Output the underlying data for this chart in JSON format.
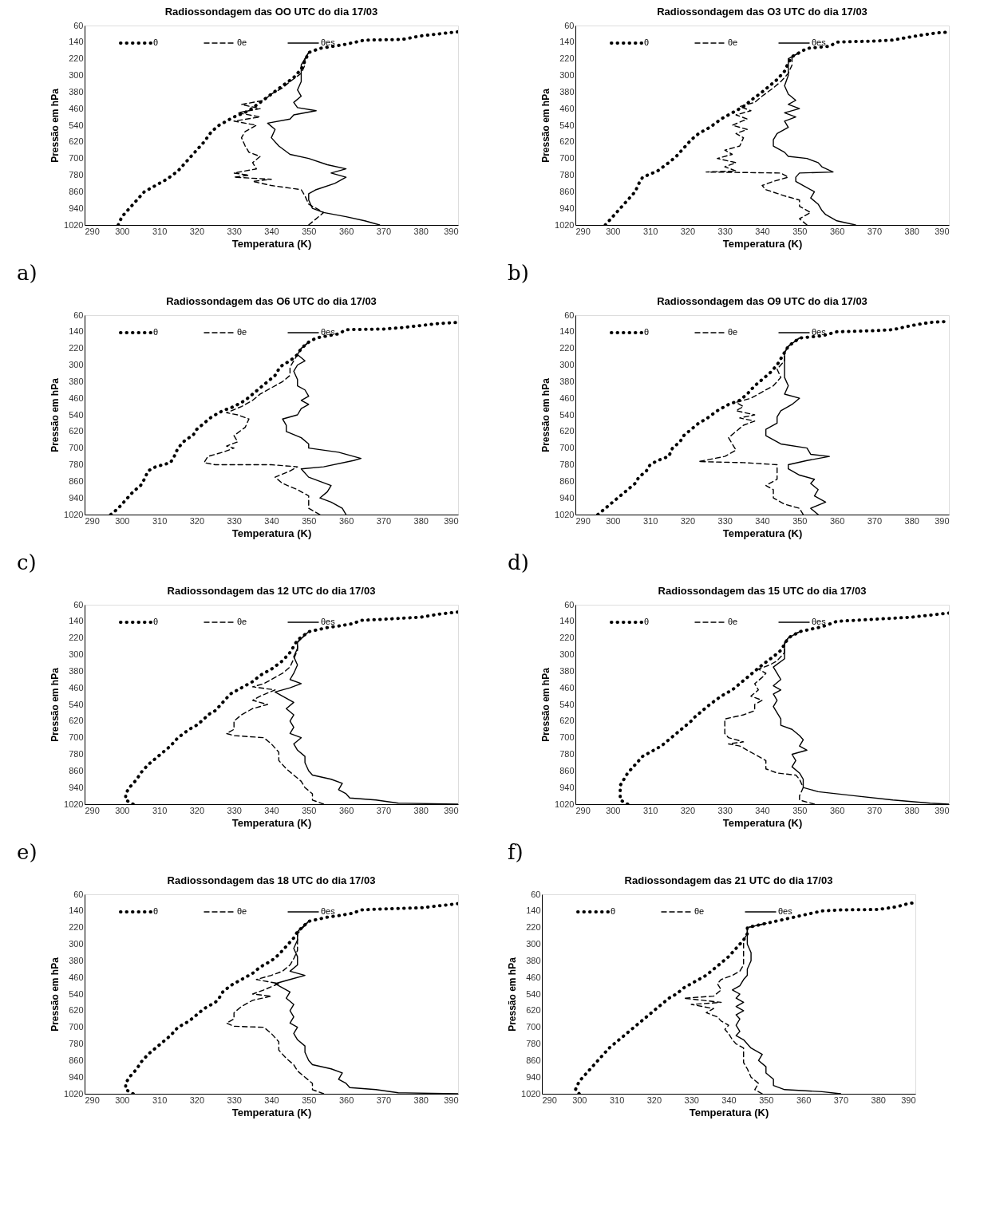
{
  "chart_data": [
    {
      "type": "line",
      "title": "Radiossondagem das OO UTC do dia 17/03",
      "xlabel": "Temperatura  (K)",
      "ylabel": "Pressão em hPa",
      "xlim": [
        290,
        390
      ],
      "xticks": [
        290,
        300,
        310,
        320,
        330,
        340,
        350,
        360,
        370,
        380,
        390
      ],
      "ylim": [
        1020,
        60
      ],
      "yticks": [
        60,
        140,
        220,
        300,
        380,
        460,
        540,
        620,
        700,
        780,
        860,
        940,
        1020
      ],
      "legend": "top left",
      "annotations": [
        "a)"
      ],
      "series": [
        {
          "name": "θ",
          "color": "#000000",
          "line_style": "dotted",
          "x": [
            299,
            300,
            302,
            304,
            306,
            309,
            312,
            315,
            318,
            320,
            322,
            324,
            326,
            330,
            334,
            337,
            340,
            343,
            346,
            348,
            349,
            350,
            353,
            360,
            365,
            375,
            380,
            385,
            390
          ],
          "values": [
            1020,
            980,
            940,
            900,
            860,
            830,
            800,
            760,
            700,
            660,
            620,
            570,
            540,
            500,
            470,
            430,
            390,
            350,
            310,
            270,
            230,
            190,
            170,
            150,
            130,
            127,
            110,
            100,
            90
          ]
        },
        {
          "name": "θe",
          "color": "#000000",
          "line_style": "dashed",
          "x": [
            350,
            354,
            350,
            349,
            348,
            340,
            335,
            340,
            330,
            334,
            330,
            336,
            335,
            337,
            334,
            333,
            332,
            333,
            336,
            330,
            337,
            331,
            337,
            332,
            338,
            340,
            343,
            345,
            348,
            349,
            349,
            350
          ],
          "values": [
            1020,
            960,
            920,
            880,
            850,
            830,
            810,
            800,
            790,
            780,
            770,
            750,
            720,
            690,
            670,
            640,
            600,
            570,
            540,
            520,
            500,
            480,
            460,
            440,
            420,
            390,
            360,
            330,
            290,
            250,
            220,
            190
          ]
        },
        {
          "name": "θes",
          "color": "#000000",
          "line_style": "solid",
          "x": [
            369,
            365,
            360,
            354,
            351,
            350,
            350,
            352,
            357,
            360,
            356,
            360,
            355,
            350,
            345,
            342,
            340,
            341,
            339,
            345,
            346,
            352,
            347,
            346,
            348,
            347,
            348,
            348,
            348,
            349,
            350
          ],
          "values": [
            1020,
            1000,
            980,
            960,
            940,
            900,
            870,
            850,
            820,
            790,
            770,
            750,
            730,
            700,
            680,
            640,
            600,
            560,
            530,
            510,
            490,
            470,
            455,
            430,
            400,
            370,
            330,
            290,
            250,
            220,
            190
          ]
        }
      ]
    },
    {
      "type": "line",
      "title": "Radiossondagem das O3 UTC do dia 17/03",
      "xlabel": "Temperatura  (K)",
      "ylabel": "Pressão em hPa",
      "xlim": [
        290,
        390
      ],
      "xticks": [
        290,
        300,
        310,
        320,
        330,
        340,
        350,
        360,
        370,
        380,
        390
      ],
      "ylim": [
        1020,
        60
      ],
      "yticks": [
        60,
        140,
        220,
        300,
        380,
        460,
        540,
        620,
        700,
        780,
        860,
        940,
        1020
      ],
      "legend": "top left",
      "annotations": [
        "b)"
      ],
      "series": [
        {
          "name": "θ",
          "color": "#000000",
          "line_style": "dotted",
          "x": [
            298,
            300,
            302,
            304,
            306,
            307,
            308,
            312,
            315,
            317,
            319,
            321,
            323,
            326,
            329,
            332,
            335,
            337,
            340,
            342,
            344,
            346,
            347,
            348,
            350,
            352,
            358,
            360,
            365,
            370,
            375,
            378,
            383,
            387,
            390
          ],
          "values": [
            1020,
            980,
            940,
            900,
            860,
            820,
            790,
            760,
            720,
            690,
            650,
            610,
            580,
            550,
            510,
            480,
            450,
            420,
            380,
            350,
            320,
            280,
            240,
            210,
            190,
            170,
            160,
            140,
            137,
            135,
            130,
            120,
            105,
            95,
            92
          ]
        },
        {
          "name": "θe",
          "color": "#000000",
          "line_style": "dashed",
          "x": [
            352,
            350,
            353,
            350,
            350,
            346,
            341,
            340,
            343,
            347,
            345,
            325,
            333,
            330,
            333,
            328,
            332,
            330,
            334,
            335,
            333,
            336,
            332,
            336,
            333,
            337,
            334,
            338,
            340,
            343,
            345,
            347,
            348,
            348,
            350
          ],
          "values": [
            1020,
            990,
            960,
            930,
            900,
            880,
            850,
            830,
            810,
            790,
            770,
            765,
            760,
            740,
            720,
            700,
            680,
            660,
            640,
            600,
            580,
            560,
            540,
            510,
            490,
            470,
            450,
            430,
            400,
            360,
            330,
            290,
            250,
            210,
            190
          ]
        },
        {
          "name": "θes",
          "color": "#000000",
          "line_style": "solid",
          "x": [
            365,
            360,
            357,
            356,
            355,
            353,
            354,
            351,
            349,
            349,
            350,
            359,
            356,
            355,
            352,
            347,
            346,
            343,
            343,
            344,
            347,
            346,
            349,
            346,
            350,
            347,
            349,
            347,
            346,
            347,
            347,
            347,
            350
          ],
          "values": [
            1020,
            1000,
            970,
            950,
            920,
            890,
            860,
            830,
            810,
            790,
            770,
            765,
            740,
            720,
            700,
            690,
            670,
            640,
            610,
            580,
            550,
            520,
            500,
            480,
            460,
            440,
            420,
            390,
            350,
            300,
            260,
            220,
            190
          ]
        }
      ]
    },
    {
      "type": "line",
      "title": "Radiossondagem das O6 UTC do dia 17/03",
      "xlabel": "Temperatura  (K)",
      "ylabel": "Pressão em hPa",
      "xlim": [
        290,
        390
      ],
      "xticks": [
        290,
        300,
        310,
        320,
        330,
        340,
        350,
        360,
        370,
        380,
        390
      ],
      "ylim": [
        1020,
        60
      ],
      "yticks": [
        60,
        140,
        220,
        300,
        380,
        460,
        540,
        620,
        700,
        780,
        860,
        940,
        1020
      ],
      "legend": "top left",
      "annotations": [
        "c)"
      ],
      "series": [
        {
          "name": "θ",
          "color": "#000000",
          "line_style": "dotted",
          "x": [
            297,
            299,
            301,
            303,
            305,
            306,
            307,
            309,
            313,
            314,
            315,
            317,
            319,
            320,
            322,
            324,
            327,
            330,
            333,
            335,
            337,
            339,
            341,
            342,
            343,
            345,
            347,
            348,
            350,
            352,
            358,
            360,
            370,
            375,
            380,
            385,
            390
          ],
          "values": [
            1020,
            990,
            950,
            910,
            880,
            850,
            810,
            790,
            770,
            740,
            700,
            660,
            640,
            610,
            580,
            550,
            520,
            500,
            470,
            440,
            410,
            380,
            350,
            320,
            300,
            280,
            250,
            220,
            190,
            170,
            150,
            130,
            127,
            120,
            110,
            100,
            95
          ]
        },
        {
          "name": "θe",
          "color": "#000000",
          "line_style": "dashed",
          "x": [
            353,
            350,
            350,
            350,
            347,
            343,
            341,
            345,
            347,
            340,
            325,
            322,
            323,
            327,
            330,
            328,
            331,
            330,
            333,
            334,
            331,
            328,
            332,
            335,
            337,
            340,
            343,
            345,
            345,
            346,
            347,
            348,
            350
          ],
          "values": [
            1020,
            990,
            960,
            930,
            900,
            870,
            840,
            810,
            790,
            780,
            780,
            770,
            740,
            720,
            700,
            690,
            670,
            640,
            600,
            560,
            540,
            530,
            500,
            470,
            440,
            410,
            380,
            350,
            310,
            280,
            250,
            220,
            190
          ]
        },
        {
          "name": "θes",
          "color": "#000000",
          "line_style": "solid",
          "x": [
            360,
            359,
            356,
            353,
            355,
            356,
            353,
            350,
            348,
            354,
            362,
            364,
            358,
            350,
            350,
            348,
            344,
            344,
            343,
            347,
            348,
            350,
            348,
            350,
            349,
            347,
            347,
            346,
            347,
            349,
            347,
            348,
            350
          ],
          "values": [
            1020,
            990,
            960,
            940,
            910,
            880,
            860,
            840,
            800,
            790,
            760,
            750,
            720,
            700,
            680,
            650,
            620,
            590,
            560,
            540,
            510,
            490,
            470,
            450,
            420,
            400,
            370,
            330,
            300,
            280,
            250,
            220,
            190
          ]
        }
      ]
    },
    {
      "type": "line",
      "title": "Radiossondagem das O9 UTC do dia 17/03",
      "xlabel": "Temperatura  (K)",
      "ylabel": "Pressão em hPa",
      "xlim": [
        290,
        390
      ],
      "xticks": [
        290,
        300,
        310,
        320,
        330,
        340,
        350,
        360,
        370,
        380,
        390
      ],
      "ylim": [
        1020,
        60
      ],
      "yticks": [
        60,
        140,
        220,
        300,
        380,
        460,
        540,
        620,
        700,
        780,
        860,
        940,
        1020
      ],
      "legend": "top left",
      "annotations": [
        "d)"
      ],
      "series": [
        {
          "name": "θ",
          "color": "#000000",
          "line_style": "dotted",
          "x": [
            296,
            298,
            300,
            302,
            304,
            306,
            307,
            309,
            310,
            312,
            315,
            316,
            318,
            319,
            321,
            323,
            325,
            328,
            331,
            334,
            336,
            338,
            340,
            342,
            344,
            345,
            346,
            347,
            350,
            356,
            360,
            370,
            375,
            380,
            385,
            390
          ],
          "values": [
            1020,
            990,
            960,
            930,
            900,
            870,
            840,
            810,
            780,
            760,
            740,
            700,
            670,
            640,
            610,
            580,
            560,
            520,
            490,
            470,
            440,
            400,
            370,
            340,
            300,
            270,
            240,
            210,
            170,
            160,
            140,
            135,
            130,
            110,
            95,
            90
          ]
        },
        {
          "name": "θe",
          "color": "#000000",
          "line_style": "dashed",
          "x": [
            351,
            350,
            346,
            343,
            343,
            341,
            344,
            344,
            344,
            335,
            323,
            330,
            333,
            332,
            331,
            333,
            335,
            338,
            334,
            338,
            333,
            335,
            333,
            337,
            340,
            343,
            345,
            344,
            346,
            346,
            347,
            350
          ],
          "values": [
            1020,
            990,
            970,
            940,
            900,
            880,
            850,
            800,
            780,
            770,
            765,
            740,
            710,
            680,
            650,
            620,
            590,
            570,
            555,
            540,
            520,
            500,
            480,
            460,
            430,
            400,
            360,
            320,
            280,
            240,
            210,
            170
          ]
        },
        {
          "name": "θes",
          "color": "#000000",
          "line_style": "solid",
          "x": [
            355,
            353,
            357,
            354,
            355,
            353,
            354,
            350,
            347,
            347,
            352,
            358,
            353,
            352,
            345,
            341,
            341,
            344,
            344,
            345,
            348,
            350,
            346,
            347,
            346,
            346,
            346,
            346,
            347,
            350
          ],
          "values": [
            1020,
            990,
            960,
            930,
            900,
            870,
            850,
            830,
            800,
            780,
            760,
            740,
            730,
            700,
            680,
            640,
            610,
            580,
            550,
            520,
            490,
            460,
            440,
            400,
            360,
            320,
            280,
            240,
            210,
            170
          ]
        }
      ]
    },
    {
      "type": "line",
      "title": "Radiossondagem das 12 UTC do dia 17/03",
      "xlabel": "Temperatura  (K)",
      "ylabel": "Pressão em hPa",
      "xlim": [
        290,
        390
      ],
      "xticks": [
        290,
        300,
        310,
        320,
        330,
        340,
        350,
        360,
        370,
        380,
        390
      ],
      "ylim": [
        1020,
        60
      ],
      "yticks": [
        60,
        140,
        220,
        300,
        380,
        460,
        540,
        620,
        700,
        780,
        860,
        940,
        1020
      ],
      "legend": "top left",
      "annotations": [
        "e)"
      ],
      "series": [
        {
          "name": "θ",
          "color": "#000000",
          "line_style": "dotted",
          "x": [
            303,
            301,
            301,
            302,
            304,
            305,
            307,
            309,
            311,
            313,
            315,
            318,
            320,
            322,
            323,
            325,
            327,
            329,
            331,
            333,
            335,
            337,
            340,
            343,
            345,
            346,
            347,
            350,
            355,
            359,
            362,
            364,
            370,
            380,
            385,
            390
          ],
          "values": [
            1020,
            1000,
            970,
            940,
            900,
            870,
            830,
            800,
            770,
            740,
            700,
            660,
            640,
            610,
            590,
            570,
            530,
            490,
            470,
            450,
            430,
            400,
            370,
            330,
            290,
            260,
            230,
            190,
            170,
            160,
            150,
            135,
            130,
            120,
            105,
            95
          ]
        },
        {
          "name": "θe",
          "color": "#000000",
          "line_style": "dashed",
          "x": [
            354,
            351,
            351,
            349,
            348,
            346,
            344,
            342,
            342,
            340,
            338,
            330,
            328,
            330,
            330,
            332,
            335,
            339,
            335,
            337,
            341,
            335,
            338,
            340,
            343,
            345,
            346,
            347,
            347,
            350
          ],
          "values": [
            1020,
            1000,
            970,
            940,
            910,
            880,
            850,
            810,
            770,
            730,
            700,
            690,
            680,
            660,
            620,
            590,
            560,
            540,
            520,
            500,
            470,
            455,
            440,
            420,
            390,
            360,
            320,
            280,
            240,
            190
          ]
        },
        {
          "name": "θes",
          "color": "#000000",
          "line_style": "solid",
          "x": [
            390,
            374,
            368,
            361,
            360,
            358,
            359,
            356,
            351,
            350,
            349,
            349,
            347,
            346,
            348,
            345,
            346,
            345,
            346,
            344,
            346,
            343,
            341,
            345,
            348,
            345,
            346,
            347,
            346,
            347,
            347,
            350
          ],
          "values": [
            1020,
            1015,
            1000,
            990,
            970,
            950,
            920,
            900,
            880,
            860,
            820,
            790,
            760,
            730,
            700,
            680,
            650,
            620,
            590,
            560,
            530,
            500,
            480,
            460,
            440,
            420,
            390,
            350,
            310,
            270,
            240,
            190
          ]
        }
      ]
    },
    {
      "type": "line",
      "title": "Radiossondagem das 15 UTC do dia 17/03",
      "xlabel": "Temperatura  (K)",
      "ylabel": "Pressão em hPa",
      "xlim": [
        290,
        390
      ],
      "xticks": [
        290,
        300,
        310,
        320,
        330,
        340,
        350,
        360,
        370,
        380,
        390
      ],
      "ylim": [
        1020,
        60
      ],
      "yticks": [
        60,
        140,
        220,
        300,
        380,
        460,
        540,
        620,
        700,
        780,
        860,
        940,
        1020
      ],
      "legend": "top left",
      "annotations": [
        "f)"
      ],
      "series": [
        {
          "name": "θ",
          "color": "#000000",
          "line_style": "dotted",
          "x": [
            304,
            302,
            302,
            302,
            303,
            304,
            306,
            308,
            310,
            313,
            315,
            317,
            319,
            321,
            322,
            324,
            326,
            329,
            332,
            334,
            336,
            338,
            340,
            343,
            345,
            346,
            347,
            350,
            355,
            357,
            360,
            370,
            380,
            385,
            390
          ],
          "values": [
            1020,
            1000,
            970,
            930,
            900,
            870,
            830,
            790,
            770,
            740,
            710,
            680,
            650,
            620,
            600,
            570,
            540,
            500,
            470,
            440,
            410,
            380,
            350,
            310,
            280,
            250,
            220,
            190,
            170,
            160,
            140,
            130,
            120,
            110,
            100
          ]
        },
        {
          "name": "θe",
          "color": "#000000",
          "line_style": "dashed",
          "x": [
            354,
            350,
            350,
            351,
            350,
            349,
            344,
            341,
            341,
            338,
            336,
            334,
            331,
            335,
            331,
            330,
            330,
            330,
            335,
            338,
            338,
            340,
            337,
            339,
            338,
            340,
            341,
            339,
            342,
            344,
            346,
            346,
            347,
            350
          ],
          "values": [
            1020,
            1000,
            980,
            940,
            900,
            880,
            870,
            850,
            810,
            780,
            760,
            740,
            730,
            720,
            700,
            680,
            640,
            610,
            590,
            570,
            540,
            520,
            500,
            470,
            440,
            410,
            390,
            370,
            350,
            330,
            290,
            250,
            220,
            190
          ]
        },
        {
          "name": "θes",
          "color": "#000000",
          "line_style": "solid",
          "x": [
            390,
            385,
            375,
            365,
            355,
            351,
            351,
            350,
            348,
            349,
            348,
            352,
            350,
            351,
            350,
            348,
            345,
            345,
            344,
            343,
            344,
            343,
            345,
            343,
            345,
            344,
            343,
            346,
            346,
            346,
            347,
            350
          ],
          "values": [
            1020,
            1015,
            1000,
            980,
            960,
            940,
            900,
            870,
            840,
            810,
            780,
            760,
            740,
            710,
            690,
            660,
            640,
            610,
            580,
            550,
            520,
            490,
            470,
            450,
            420,
            390,
            360,
            320,
            280,
            240,
            220,
            190
          ]
        }
      ]
    },
    {
      "type": "line",
      "title": "Radiossondagem das 18 UTC do dia 17/03",
      "xlabel": "Temperatura  (K)",
      "ylabel": "Pressão em hPa",
      "xlim": [
        290,
        390
      ],
      "xticks": [
        290,
        300,
        310,
        320,
        330,
        340,
        350,
        360,
        370,
        380,
        390
      ],
      "ylim": [
        1020,
        60
      ],
      "yticks": [
        60,
        140,
        220,
        300,
        380,
        460,
        540,
        620,
        700,
        780,
        860,
        940,
        1020
      ],
      "legend": "top left",
      "series": [
        {
          "name": "θ",
          "color": "#000000",
          "line_style": "dotted",
          "x": [
            303,
            301,
            301,
            302,
            304,
            305,
            307,
            309,
            311,
            313,
            315,
            318,
            320,
            322,
            325,
            326,
            327,
            329,
            331,
            333,
            335,
            337,
            340,
            342,
            344,
            346,
            347,
            350,
            355,
            359,
            362,
            364,
            370,
            380,
            385,
            390
          ],
          "values": [
            1020,
            1000,
            970,
            940,
            900,
            870,
            830,
            800,
            770,
            740,
            700,
            670,
            640,
            610,
            580,
            560,
            530,
            500,
            480,
            460,
            440,
            410,
            380,
            350,
            310,
            270,
            240,
            190,
            170,
            160,
            150,
            135,
            130,
            125,
            115,
            105
          ]
        },
        {
          "name": "θe",
          "color": "#000000",
          "line_style": "dashed",
          "x": [
            354,
            351,
            351,
            349,
            347,
            346,
            344,
            342,
            342,
            340,
            338,
            330,
            328,
            330,
            330,
            332,
            335,
            340,
            335,
            338,
            342,
            336,
            340,
            343,
            345,
            346,
            347,
            347,
            347,
            350
          ],
          "values": [
            1020,
            1000,
            970,
            940,
            910,
            880,
            850,
            810,
            770,
            730,
            700,
            695,
            680,
            660,
            630,
            600,
            570,
            550,
            540,
            520,
            490,
            470,
            450,
            430,
            400,
            370,
            330,
            290,
            250,
            190
          ]
        },
        {
          "name": "θes",
          "color": "#000000",
          "line_style": "solid",
          "x": [
            390,
            374,
            368,
            361,
            360,
            358,
            359,
            356,
            351,
            350,
            349,
            349,
            347,
            346,
            347,
            345,
            346,
            345,
            346,
            344,
            345,
            342,
            341,
            345,
            349,
            345,
            347,
            347,
            346,
            347,
            347,
            350
          ],
          "values": [
            1020,
            1015,
            1000,
            990,
            970,
            950,
            920,
            900,
            880,
            860,
            820,
            790,
            760,
            730,
            700,
            680,
            650,
            620,
            590,
            560,
            530,
            500,
            490,
            470,
            450,
            430,
            400,
            360,
            320,
            280,
            240,
            190
          ]
        }
      ]
    },
    {
      "type": "line",
      "title": "Radiossondagem das 21 UTC do dia 17/03",
      "xlabel": "Temperatura  (K)",
      "ylabel": "Pressão em hPa",
      "xlim": [
        290,
        390
      ],
      "xticks": [
        290,
        300,
        310,
        320,
        330,
        340,
        350,
        360,
        370,
        380,
        390
      ],
      "ylim": [
        1020,
        60
      ],
      "yticks": [
        60,
        140,
        220,
        300,
        380,
        460,
        540,
        620,
        700,
        780,
        860,
        940,
        1020
      ],
      "legend": "top left",
      "series": [
        {
          "name": "θ",
          "color": "#000000",
          "line_style": "dotted",
          "x": [
            300,
            299,
            300,
            302,
            304,
            306,
            308,
            310,
            312,
            314,
            316,
            318,
            320,
            322,
            324,
            326,
            328,
            330,
            332,
            334,
            336,
            338,
            340,
            342,
            344,
            345,
            345,
            350,
            355,
            360,
            365,
            370,
            380,
            385,
            388,
            390
          ],
          "values": [
            1020,
            1000,
            960,
            920,
            880,
            840,
            800,
            770,
            740,
            710,
            680,
            650,
            620,
            590,
            560,
            540,
            510,
            490,
            470,
            450,
            420,
            390,
            360,
            320,
            280,
            250,
            220,
            200,
            180,
            160,
            140,
            135,
            133,
            120,
            105,
            100
          ]
        },
        {
          "name": "θe",
          "color": "#000000",
          "line_style": "dashed",
          "x": [
            349,
            347,
            348,
            346,
            345,
            344,
            344,
            344,
            342,
            341,
            340,
            339,
            340,
            338,
            337,
            334,
            336,
            330,
            338,
            328,
            336,
            338,
            337,
            338,
            341,
            343,
            344,
            344,
            344,
            344,
            345,
            345,
            350
          ],
          "values": [
            1020,
            1000,
            970,
            940,
            900,
            870,
            830,
            800,
            780,
            760,
            730,
            710,
            690,
            670,
            650,
            630,
            610,
            590,
            580,
            560,
            550,
            520,
            490,
            470,
            450,
            430,
            400,
            360,
            320,
            280,
            250,
            220,
            200
          ]
        },
        {
          "name": "θes",
          "color": "#000000",
          "line_style": "solid",
          "x": [
            370,
            365,
            355,
            352,
            352,
            350,
            350,
            348,
            349,
            346,
            345,
            344,
            342,
            343,
            342,
            343,
            342,
            344,
            342,
            344,
            342,
            343,
            341,
            343,
            344,
            345,
            345,
            346,
            346,
            345,
            345,
            345,
            350
          ],
          "values": [
            1020,
            1010,
            1000,
            980,
            950,
            920,
            890,
            860,
            830,
            800,
            780,
            760,
            740,
            720,
            690,
            660,
            640,
            620,
            600,
            580,
            560,
            540,
            520,
            500,
            470,
            450,
            420,
            380,
            340,
            300,
            260,
            220,
            200
          ]
        }
      ]
    }
  ]
}
